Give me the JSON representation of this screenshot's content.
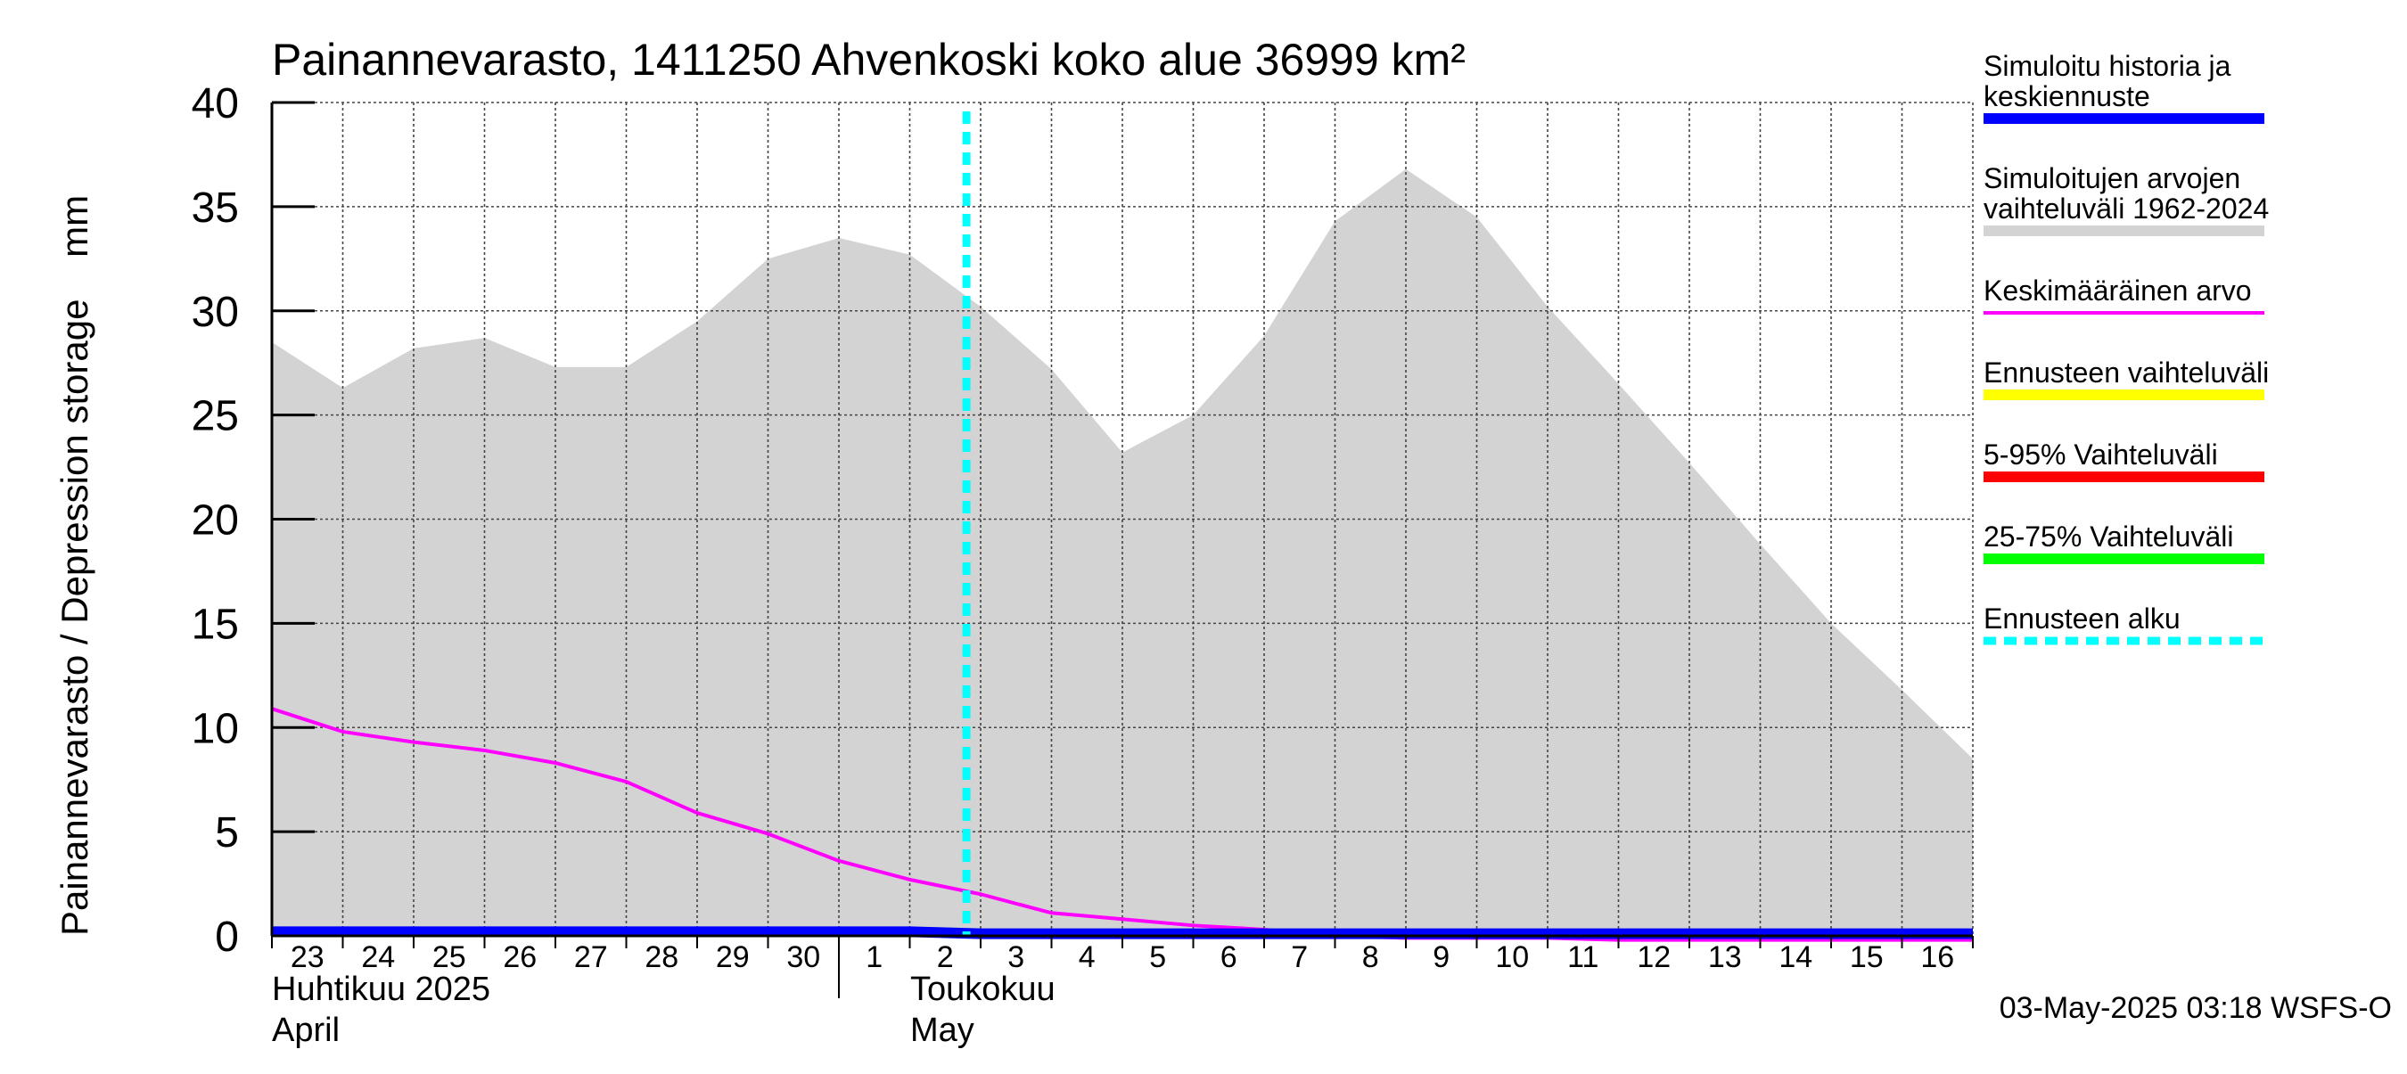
{
  "chart_data": {
    "type": "area",
    "title": "Painannevarasto, 1411250 Ahvenkoski koko alue 36999 km²",
    "ylabel": "Painannevarasto / Depression storage    mm",
    "ylim": [
      0,
      40
    ],
    "yticks": [
      "0",
      "5",
      "10",
      "15",
      "20",
      "25",
      "30",
      "35",
      "40"
    ],
    "x_dates": [
      "2025-04-23",
      "2025-04-24",
      "2025-04-25",
      "2025-04-26",
      "2025-04-27",
      "2025-04-28",
      "2025-04-29",
      "2025-04-30",
      "2025-05-01",
      "2025-05-02",
      "2025-05-03",
      "2025-05-04",
      "2025-05-05",
      "2025-05-06",
      "2025-05-07",
      "2025-05-08",
      "2025-05-09",
      "2025-05-10",
      "2025-05-11",
      "2025-05-12",
      "2025-05-13",
      "2025-05-14",
      "2025-05-15",
      "2025-05-16",
      "2025-05-17"
    ],
    "day_labels": [
      "23",
      "24",
      "25",
      "26",
      "27",
      "28",
      "29",
      "30",
      "1",
      "2",
      "3",
      "4",
      "5",
      "6",
      "7",
      "8",
      "9",
      "10",
      "11",
      "12",
      "13",
      "14",
      "15",
      "16"
    ],
    "month_labels": [
      {
        "fi": "Huhtikuu  2025",
        "en": "April"
      },
      {
        "fi": "Toukokuu",
        "en": "May"
      }
    ],
    "series": [
      {
        "name": "Simuloitujen arvojen vaihteluväli 1962-2024",
        "kind": "band",
        "color": "#d3d3d3",
        "upper": [
          28.5,
          26.3,
          28.2,
          28.7,
          27.3,
          27.3,
          29.5,
          32.5,
          33.5,
          32.7,
          30.2,
          27.2,
          23.2,
          25.0,
          28.8,
          34.3,
          36.8,
          34.5,
          30.2,
          26.5,
          22.7,
          18.8,
          15.0,
          11.8,
          8.5
        ],
        "lower": [
          0,
          0,
          0,
          0,
          0,
          0,
          0,
          0,
          0,
          0,
          0,
          0,
          0,
          0,
          0,
          0,
          0,
          0,
          0,
          0,
          0,
          0,
          0,
          0,
          0
        ]
      },
      {
        "name": "Keskimääräinen arvo",
        "kind": "line",
        "color": "#ff00ff",
        "values": [
          10.9,
          9.8,
          9.3,
          8.9,
          8.3,
          7.4,
          5.9,
          4.9,
          3.6,
          2.7,
          2.0,
          1.1,
          0.8,
          0.5,
          0.3,
          0.0,
          -0.1,
          -0.1,
          -0.1,
          -0.2,
          -0.2,
          -0.2,
          -0.2,
          -0.2,
          -0.2
        ]
      },
      {
        "name": "Simuloitu historia ja keskiennuste",
        "kind": "line",
        "color": "#0000ff",
        "values": [
          0.2,
          0.2,
          0.2,
          0.2,
          0.2,
          0.2,
          0.2,
          0.2,
          0.2,
          0.2,
          0.1,
          0.1,
          0.1,
          0.1,
          0.1,
          0.1,
          0.1,
          0.1,
          0.1,
          0.1,
          0.1,
          0.1,
          0.1,
          0.1,
          0.1
        ]
      }
    ],
    "forecast_start": "2025-05-03",
    "legend_position": "right",
    "grid": true
  },
  "legend": [
    {
      "lines": [
        "Simuloitu historia ja",
        "keskiennuste"
      ],
      "color": "#0000ff",
      "style": "solid"
    },
    {
      "lines": [
        "Simuloitujen arvojen",
        "vaihteluväli 1962-2024"
      ],
      "color": "#d3d3d3",
      "style": "solid"
    },
    {
      "lines": [
        "Keskimääräinen arvo"
      ],
      "color": "#ff00ff",
      "style": "thin"
    },
    {
      "lines": [
        "Ennusteen vaihteluväli"
      ],
      "color": "#ffff00",
      "style": "solid"
    },
    {
      "lines": [
        "5-95% Vaihteluväli"
      ],
      "color": "#ff0000",
      "style": "solid"
    },
    {
      "lines": [
        "25-75% Vaihteluväli"
      ],
      "color": "#00ff00",
      "style": "solid"
    },
    {
      "lines": [
        "Ennusteen alku"
      ],
      "color": "#00ffff",
      "style": "dashed"
    }
  ],
  "footer": {
    "timestamp": "03-May-2025 03:18 WSFS-O"
  }
}
